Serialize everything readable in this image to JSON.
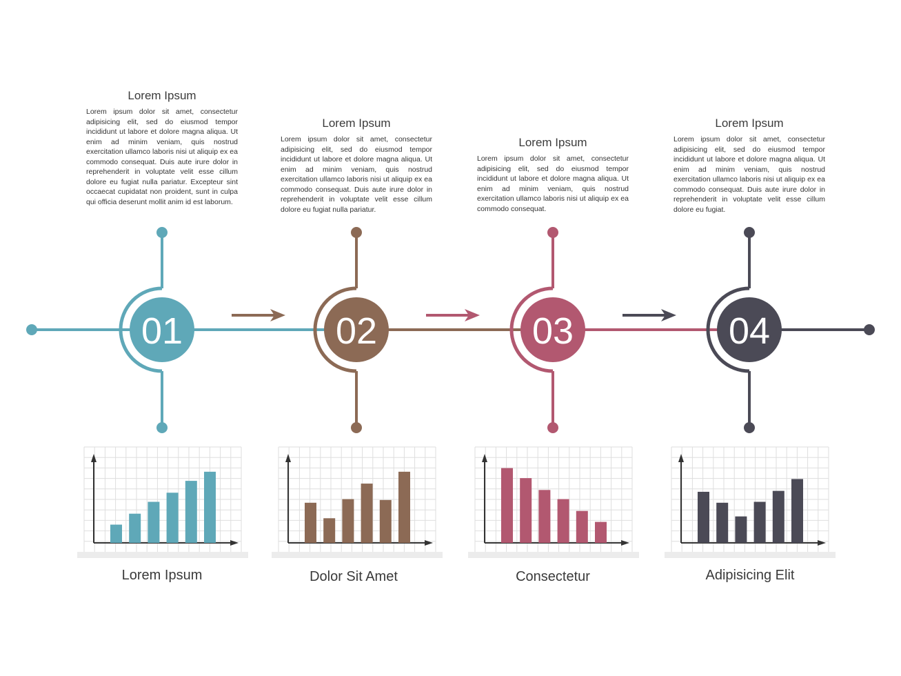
{
  "steps": [
    {
      "number": "01",
      "color": "#5fa8b8",
      "title": "Lorem Ipsum",
      "text": "Lorem ipsum dolor sit amet, consectetur adipisicing elit, sed do eiusmod tempor incididunt ut labore et dolore magna aliqua. Ut enim ad minim veniam, quis nostrud exercitation ullamco laboris nisi ut aliquip ex ea commodo consequat. Duis aute irure dolor in reprehenderit in voluptate velit esse cillum dolore eu fugiat nulla pariatur. Excepteur sint occaecat cupidatat non proident, sunt in culpa qui officia deserunt mollit anim id est laborum.",
      "chart_label": "Lorem Ipsum"
    },
    {
      "number": "02",
      "color": "#8c6a55",
      "title": "Lorem Ipsum",
      "text": "Lorem ipsum dolor sit amet, consectetur adipisicing elit, sed do eiusmod tempor incididunt ut labore et dolore magna aliqua. Ut enim ad minim veniam, quis nostrud exercitation ullamco laboris nisi ut aliquip ex ea commodo consequat. Duis aute irure dolor in reprehenderit in voluptate velit esse cillum dolore eu fugiat nulla pariatur.",
      "chart_label": "Dolor Sit Amet"
    },
    {
      "number": "03",
      "color": "#b25870",
      "title": "Lorem Ipsum",
      "text": "Lorem ipsum dolor sit amet, consectetur adipisicing elit, sed do eiusmod tempor incididunt ut labore et dolore magna aliqua. Ut enim ad minim veniam, quis nostrud exercitation ullamco laboris nisi ut aliquip ex ea commodo consequat.",
      "chart_label": "Consectetur"
    },
    {
      "number": "04",
      "color": "#4b4a56",
      "title": "Lorem Ipsum",
      "text": "Lorem ipsum dolor sit amet, consectetur adipisicing elit, sed do eiusmod tempor incididunt ut labore et dolore magna aliqua. Ut enim ad minim veniam, quis nostrud exercitation ullamco laboris nisi ut aliquip ex ea commodo consequat. Duis aute irure dolor in reprehenderit in voluptate velit esse cillum dolore eu fugiat.",
      "chart_label": "Adipisicing Elit"
    }
  ],
  "chart_data": [
    {
      "type": "bar",
      "values": [
        2,
        3.2,
        4.5,
        5.5,
        6.8,
        7.8
      ],
      "ylim": [
        0,
        9
      ]
    },
    {
      "type": "bar",
      "values": [
        4.4,
        2.7,
        4.8,
        6.5,
        4.7,
        7.8
      ],
      "ylim": [
        0,
        9
      ]
    },
    {
      "type": "bar",
      "values": [
        8.2,
        7.1,
        5.8,
        4.8,
        3.5,
        2.3
      ],
      "ylim": [
        0,
        9
      ]
    },
    {
      "type": "bar",
      "values": [
        5.6,
        4.4,
        2.9,
        4.5,
        5.7,
        7
      ],
      "ylim": [
        0,
        9
      ]
    }
  ]
}
